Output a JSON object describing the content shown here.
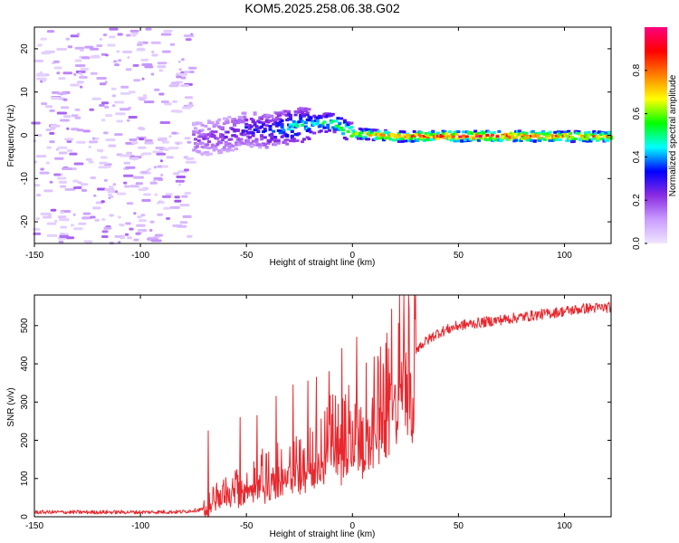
{
  "title": "KOM5.2025.258.06.38.G02",
  "colors": {
    "snr_line": "#e8282e",
    "axis": "#000000",
    "background": "#ffffff"
  },
  "chart_data": [
    {
      "type": "heatmap",
      "name": "spectrogram",
      "xlabel": "Height of straight line (km)",
      "ylabel": "Frequency (Hz)",
      "xlim": [
        -150,
        122
      ],
      "ylim": [
        -25,
        25
      ],
      "x_ticks": [
        -150,
        -100,
        -50,
        0,
        50,
        100
      ],
      "y_ticks": [
        -20,
        -10,
        0,
        10,
        20
      ],
      "colorbar": {
        "label": "Normalized spectral amplitude",
        "range": [
          0,
          1
        ],
        "ticks": [
          0.0,
          0.2,
          0.4,
          0.6,
          0.8
        ],
        "tick_labels": [
          "0.0",
          "0.2",
          "0.4",
          "0.6",
          "0.8"
        ],
        "stops": [
          "#f0e6ff",
          "#c99cff",
          "#8a2be2",
          "#0000ff",
          "#00ffff",
          "#00ff00",
          "#ffff00",
          "#ff8000",
          "#ff0000",
          "#ff0080"
        ]
      },
      "signal_track": {
        "x": [
          -75,
          -60,
          -50,
          -40,
          -30,
          -20,
          -10,
          0,
          20,
          50,
          80,
          100,
          122
        ],
        "freq": [
          -1,
          0,
          1.5,
          1,
          2,
          2.5,
          3,
          0.5,
          -0.3,
          -0.2,
          -0.2,
          -0.3,
          -0.3
        ],
        "amplitude": [
          0.2,
          0.25,
          0.3,
          0.35,
          0.45,
          0.5,
          0.55,
          0.7,
          0.85,
          0.95,
          0.9,
          0.85,
          0.8
        ]
      },
      "noise_region": {
        "x_range": [
          -150,
          -75
        ],
        "freq_range": [
          -25,
          25
        ],
        "amplitude": [
          0.03,
          0.18
        ]
      }
    },
    {
      "type": "line",
      "name": "snr",
      "xlabel": "Height of straight line (km)",
      "ylabel": "SNR (v/v)",
      "xlim": [
        -150,
        122
      ],
      "ylim": [
        0,
        580
      ],
      "x_ticks": [
        -150,
        -100,
        -50,
        0,
        50,
        100
      ],
      "y_ticks": [
        0,
        100,
        200,
        300,
        400,
        500
      ],
      "trend": {
        "x": [
          -150,
          -100,
          -80,
          -70,
          -60,
          -50,
          -40,
          -30,
          -20,
          -10,
          0,
          10,
          20,
          30,
          40,
          50,
          70,
          90,
          110,
          122
        ],
        "y": [
          12,
          12,
          13,
          20,
          70,
          90,
          110,
          130,
          165,
          200,
          230,
          280,
          360,
          440,
          480,
          500,
          515,
          530,
          545,
          548
        ]
      },
      "spikes": [
        {
          "x": -68,
          "y": 225
        },
        {
          "x": -53,
          "y": 260
        },
        {
          "x": -45,
          "y": 265
        },
        {
          "x": -36,
          "y": 315
        },
        {
          "x": -28,
          "y": 345
        },
        {
          "x": -21,
          "y": 355
        },
        {
          "x": -17,
          "y": 365
        },
        {
          "x": -11,
          "y": 380
        },
        {
          "x": -5,
          "y": 440
        },
        {
          "x": 2,
          "y": 470
        },
        {
          "x": 12,
          "y": 420
        },
        {
          "x": 17,
          "y": 440
        }
      ]
    }
  ]
}
